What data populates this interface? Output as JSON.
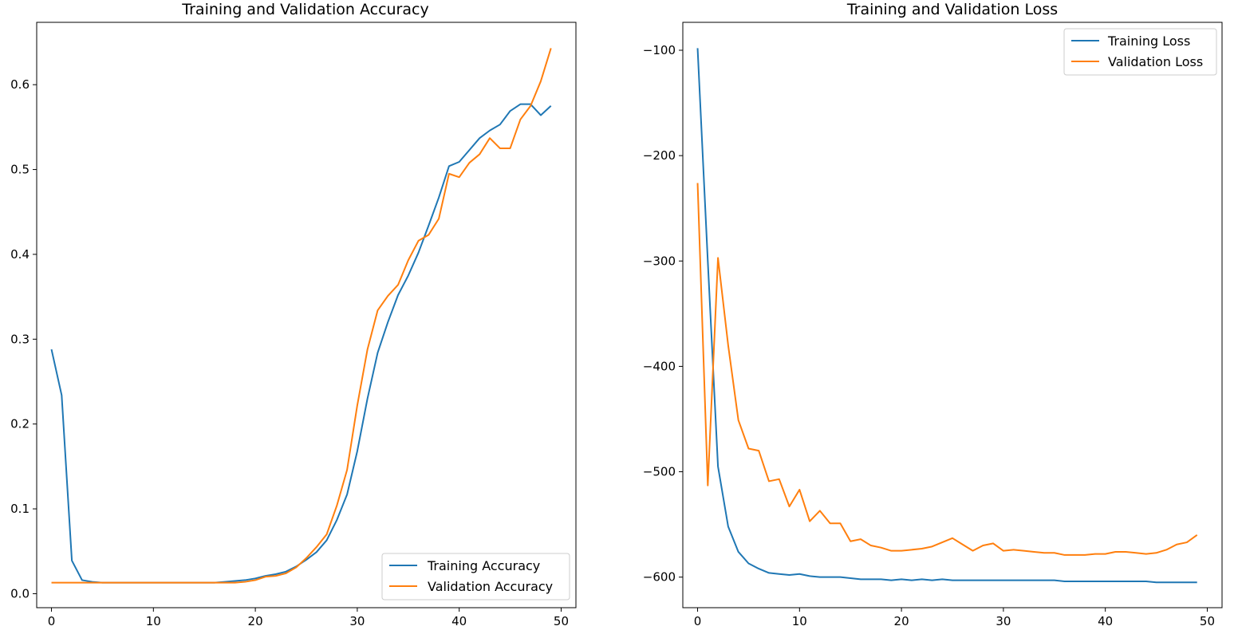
{
  "chart_data": [
    {
      "type": "line",
      "title": "Training and Validation Accuracy",
      "xlabel": "",
      "ylabel": "",
      "xlim": [
        -1.45,
        51.45
      ],
      "ylim": [
        -0.0165,
        0.6735
      ],
      "xticks": [
        0,
        10,
        20,
        30,
        40,
        50
      ],
      "yticks": [
        0.0,
        0.1,
        0.2,
        0.3,
        0.4,
        0.5,
        0.6
      ],
      "ytick_labels": [
        "0.0",
        "0.1",
        "0.2",
        "0.3",
        "0.4",
        "0.5",
        "0.6"
      ],
      "grid": false,
      "legend_position": "lower-right",
      "series": [
        {
          "name": "Training Accuracy",
          "color": "#1f77b4",
          "x": [
            0,
            1,
            2,
            3,
            4,
            5,
            6,
            7,
            8,
            9,
            10,
            11,
            12,
            13,
            14,
            15,
            16,
            17,
            18,
            19,
            20,
            21,
            22,
            23,
            24,
            25,
            26,
            27,
            28,
            29,
            30,
            31,
            32,
            33,
            34,
            35,
            36,
            37,
            38,
            39,
            40,
            41,
            42,
            43,
            44,
            45,
            46,
            47,
            48,
            49
          ],
          "values": [
            0.288,
            0.234,
            0.039,
            0.016,
            0.014,
            0.013,
            0.013,
            0.013,
            0.013,
            0.013,
            0.013,
            0.013,
            0.013,
            0.013,
            0.013,
            0.013,
            0.013,
            0.014,
            0.015,
            0.016,
            0.018,
            0.021,
            0.023,
            0.026,
            0.032,
            0.04,
            0.049,
            0.063,
            0.087,
            0.117,
            0.168,
            0.23,
            0.284,
            0.32,
            0.352,
            0.375,
            0.402,
            0.434,
            0.467,
            0.504,
            0.509,
            0.523,
            0.537,
            0.546,
            0.553,
            0.569,
            0.577,
            0.577,
            0.564,
            0.575
          ]
        },
        {
          "name": "Validation Accuracy",
          "color": "#ff7f0e",
          "x": [
            0,
            1,
            2,
            3,
            4,
            5,
            6,
            7,
            8,
            9,
            10,
            11,
            12,
            13,
            14,
            15,
            16,
            17,
            18,
            19,
            20,
            21,
            22,
            23,
            24,
            25,
            26,
            27,
            28,
            29,
            30,
            31,
            32,
            33,
            34,
            35,
            36,
            37,
            38,
            39,
            40,
            41,
            42,
            43,
            44,
            45,
            46,
            47,
            48,
            49
          ],
          "values": [
            0.013,
            0.013,
            0.013,
            0.013,
            0.013,
            0.013,
            0.013,
            0.013,
            0.013,
            0.013,
            0.013,
            0.013,
            0.013,
            0.013,
            0.013,
            0.013,
            0.013,
            0.013,
            0.013,
            0.014,
            0.016,
            0.02,
            0.021,
            0.024,
            0.031,
            0.042,
            0.055,
            0.07,
            0.104,
            0.146,
            0.222,
            0.288,
            0.334,
            0.351,
            0.364,
            0.393,
            0.416,
            0.423,
            0.442,
            0.495,
            0.491,
            0.508,
            0.518,
            0.537,
            0.525,
            0.525,
            0.559,
            0.575,
            0.604,
            0.643
          ]
        }
      ]
    },
    {
      "type": "line",
      "title": "Training and Validation Loss",
      "xlabel": "",
      "ylabel": "",
      "xlim": [
        -1.45,
        51.45
      ],
      "ylim": [
        -629,
        -73.5
      ],
      "xticks": [
        0,
        10,
        20,
        30,
        40,
        50
      ],
      "yticks": [
        -100,
        -200,
        -300,
        -400,
        -500,
        -600
      ],
      "ytick_labels": [
        "−100",
        "−200",
        "−300",
        "−400",
        "−500",
        "−600"
      ],
      "grid": false,
      "legend_position": "upper-right",
      "series": [
        {
          "name": "Training Loss",
          "color": "#1f77b4",
          "x": [
            0,
            1,
            2,
            3,
            4,
            5,
            6,
            7,
            8,
            9,
            10,
            11,
            12,
            13,
            14,
            15,
            16,
            17,
            18,
            19,
            20,
            21,
            22,
            23,
            24,
            25,
            26,
            27,
            28,
            29,
            30,
            31,
            32,
            33,
            34,
            35,
            36,
            37,
            38,
            39,
            40,
            41,
            42,
            43,
            44,
            45,
            46,
            47,
            48,
            49
          ],
          "values": [
            -98,
            -300,
            -495,
            -552,
            -576,
            -587,
            -592,
            -596,
            -597,
            -598,
            -597,
            -599,
            -600,
            -600,
            -600,
            -601,
            -602,
            -602,
            -602,
            -603,
            -602,
            -603,
            -602,
            -603,
            -602,
            -603,
            -603,
            -603,
            -603,
            -603,
            -603,
            -603,
            -603,
            -603,
            -603,
            -603,
            -604,
            -604,
            -604,
            -604,
            -604,
            -604,
            -604,
            -604,
            -604,
            -605,
            -605,
            -605,
            -605,
            -605
          ]
        },
        {
          "name": "Validation Loss",
          "color": "#ff7f0e",
          "x": [
            0,
            1,
            2,
            3,
            4,
            5,
            6,
            7,
            8,
            9,
            10,
            11,
            12,
            13,
            14,
            15,
            16,
            17,
            18,
            19,
            20,
            21,
            22,
            23,
            24,
            25,
            26,
            27,
            28,
            29,
            30,
            31,
            32,
            33,
            34,
            35,
            36,
            37,
            38,
            39,
            40,
            41,
            42,
            43,
            44,
            45,
            46,
            47,
            48,
            49
          ],
          "values": [
            -226,
            -513,
            -297,
            -380,
            -451,
            -478,
            -480,
            -509,
            -507,
            -533,
            -517,
            -547,
            -537,
            -549,
            -549,
            -566,
            -564,
            -570,
            -572,
            -575,
            -575,
            -574,
            -573,
            -571,
            -567,
            -563,
            -569,
            -575,
            -570,
            -568,
            -575,
            -574,
            -575,
            -576,
            -577,
            -577,
            -579,
            -579,
            -579,
            -578,
            -578,
            -576,
            -576,
            -577,
            -578,
            -577,
            -574,
            -569,
            -567,
            -560
          ]
        }
      ]
    }
  ]
}
